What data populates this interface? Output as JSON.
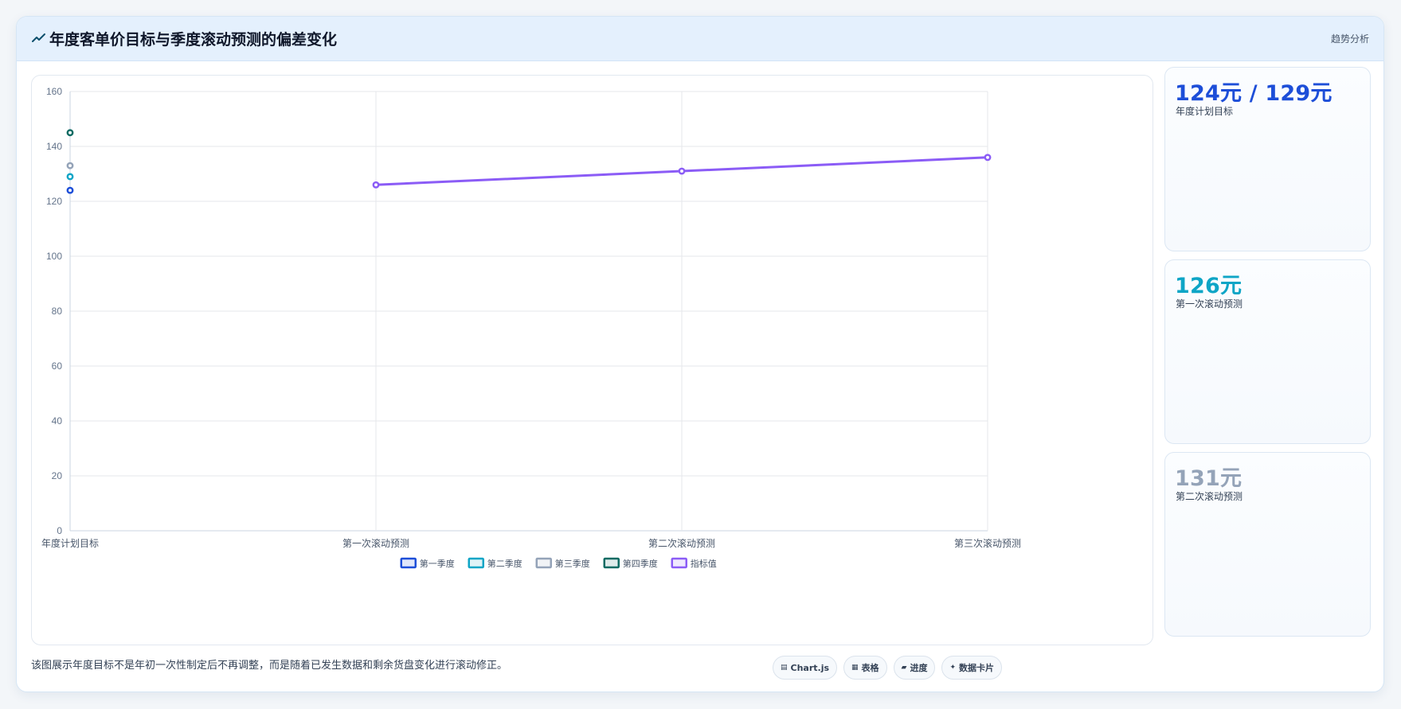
{
  "header": {
    "title": "年度客单价目标与季度滚动预测的偏差变化",
    "tag": "趋势分析"
  },
  "stats": [
    {
      "value": "124元 / 129元",
      "label": "年度计划目标",
      "color": "#1d4ed8"
    },
    {
      "value": "126元",
      "label": "第一次滚动预测",
      "color": "#0ea5c6"
    },
    {
      "value": "131元",
      "label": "第二次滚动预测",
      "color": "#94a3b8"
    }
  ],
  "footer": {
    "note": "该图展示年度目标不是年初一次性制定后不再调整，而是随着已发生数据和剩余货盘变化进行滚动修正。",
    "tags": [
      {
        "icon": "chart-icon",
        "label": "Chart.js"
      },
      {
        "icon": "table-icon",
        "label": "表格"
      },
      {
        "icon": "progress-icon",
        "label": "进度"
      },
      {
        "icon": "data-card-icon",
        "label": "数据卡片"
      }
    ]
  },
  "chart_data": {
    "type": "line",
    "categories": [
      "年度计划目标",
      "第一次滚动预测",
      "第二次滚动预测",
      "第三次滚动预测"
    ],
    "ylim": [
      0,
      160
    ],
    "yticks": [
      0,
      20,
      40,
      60,
      80,
      100,
      120,
      140,
      160
    ],
    "grid": true,
    "legend_position": "bottom",
    "series": [
      {
        "name": "第一季度",
        "type": "point",
        "color": "#1d4ed8",
        "values": [
          124,
          null,
          null,
          null
        ]
      },
      {
        "name": "第二季度",
        "type": "point",
        "color": "#0ea5c6",
        "values": [
          129,
          null,
          null,
          null
        ]
      },
      {
        "name": "第三季度",
        "type": "point",
        "color": "#94a3b8",
        "values": [
          133,
          null,
          null,
          null
        ]
      },
      {
        "name": "第四季度",
        "type": "point",
        "color": "#0f6b63",
        "values": [
          145,
          null,
          null,
          null
        ]
      },
      {
        "name": "指标值",
        "type": "line",
        "color": "#8b5cf6",
        "values": [
          null,
          126,
          131,
          136
        ]
      }
    ]
  }
}
